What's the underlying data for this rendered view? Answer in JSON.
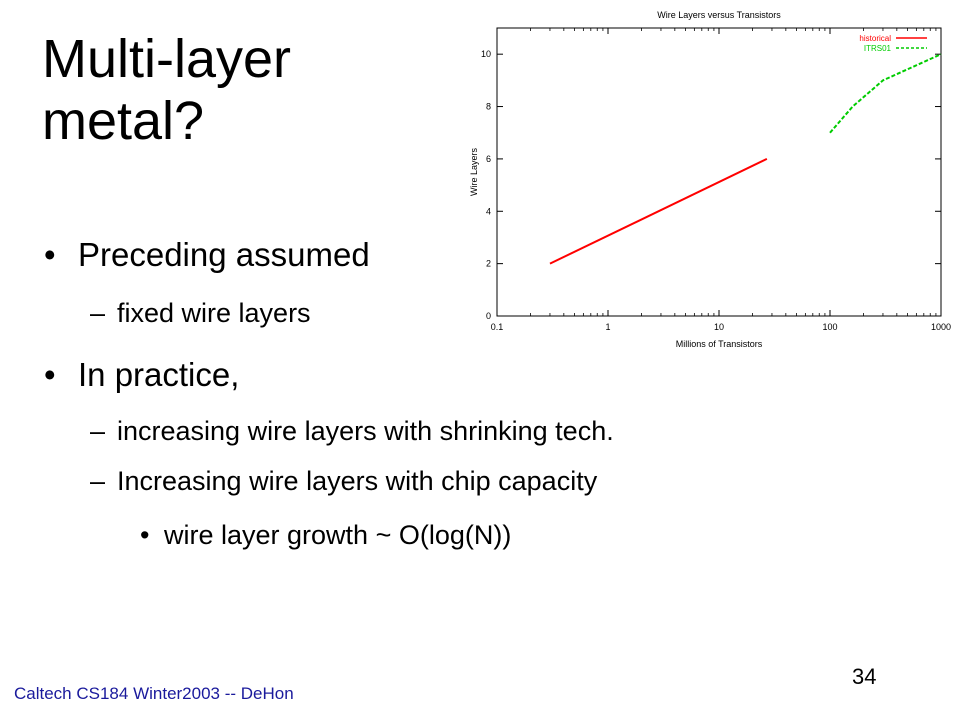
{
  "slide": {
    "title_line1": "Multi-layer",
    "title_line2": "metal?",
    "bullets": [
      {
        "level": 1,
        "marker": "•",
        "text": "Preceding assumed"
      },
      {
        "level": 2,
        "marker": "–",
        "text": "fixed wire layers"
      },
      {
        "level": 1,
        "marker": "•",
        "text": "In practice,"
      },
      {
        "level": 2,
        "marker": "–",
        "text": "increasing wire layers with shrinking tech."
      },
      {
        "level": 2,
        "marker": "–",
        "text": "Increasing wire layers with chip capacity"
      },
      {
        "level": 3,
        "marker": "•",
        "text": "wire layer growth ~ O(log(N))"
      }
    ],
    "footer": "Caltech CS184 Winter2003 -- DeHon",
    "page_number": "34"
  },
  "chart_data": {
    "type": "line",
    "title": "Wire Layers versus Transistors",
    "xlabel": "Millions of Transistors",
    "ylabel": "Wire Layers",
    "xscale": "log",
    "xlim": [
      0.1,
      1000
    ],
    "ylim": [
      0,
      11
    ],
    "x_ticks": [
      {
        "value": 0.1,
        "label": "0.1"
      },
      {
        "value": 1,
        "label": "1"
      },
      {
        "value": 10,
        "label": "10"
      },
      {
        "value": 100,
        "label": "100"
      },
      {
        "value": 1000,
        "label": "1000"
      }
    ],
    "y_ticks": [
      {
        "value": 0,
        "label": "0"
      },
      {
        "value": 2,
        "label": "2"
      },
      {
        "value": 4,
        "label": "4"
      },
      {
        "value": 6,
        "label": "6"
      },
      {
        "value": 8,
        "label": "8"
      },
      {
        "value": 10,
        "label": "10"
      }
    ],
    "grid": false,
    "legend_position": "top-right",
    "series": [
      {
        "name": "historical",
        "color": "#ff0000",
        "style": "solid",
        "x": [
          0.3,
          27
        ],
        "y": [
          2,
          6
        ]
      },
      {
        "name": "ITRS01",
        "color": "#00cc00",
        "style": "dashed",
        "x": [
          100,
          160,
          300,
          1000
        ],
        "y": [
          7,
          8,
          9,
          10
        ]
      }
    ]
  }
}
